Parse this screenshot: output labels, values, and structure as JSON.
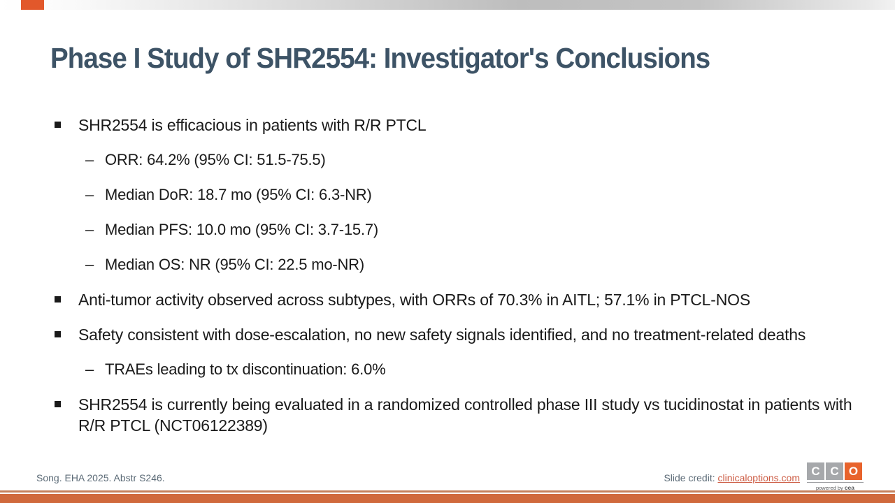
{
  "slide": {
    "title": "Phase I Study of SHR2554: Investigator's Conclusions",
    "markers": {
      "sub_dash": "–"
    },
    "bullets": [
      {
        "text": "SHR2554 is efficacious in patients with R/R PTCL",
        "sub": [
          "ORR: 64.2% (95% CI: 51.5-75.5)",
          "Median DoR: 18.7 mo (95% CI: 6.3-NR)",
          "Median PFS: 10.0 mo (95% CI: 3.7-15.7)",
          "Median OS: NR (95% CI: 22.5 mo-NR)"
        ]
      },
      {
        "text": "Anti-tumor activity observed across subtypes, with ORRs of 70.3% in AITL; 57.1% in PTCL-NOS"
      },
      {
        "text": "Safety consistent with dose-escalation, no new safety signals identified, and no treatment-related deaths",
        "sub": [
          "TRAEs leading to tx discontinuation: 6.0%"
        ]
      },
      {
        "text": "SHR2554 is currently being evaluated in a randomized controlled phase III study vs tucidinostat in patients with R/R PTCL (NCT06122389)"
      }
    ],
    "footer": {
      "source": "Song. EHA 2025. Abstr S246.",
      "credit_label": "Slide credit: ",
      "credit_link": "clinicaloptions.com"
    },
    "logo": {
      "letters": [
        "C",
        "C",
        "O"
      ],
      "tagline_prefix": "powered by ",
      "tagline_brand": "cea"
    },
    "colors": {
      "accent_orange": "#E2582B",
      "logo_orange": "#E8632C",
      "logo_gray": "#A6A8AB",
      "bottom_rule": "#C5805C",
      "bottom_bar": "#D0693C",
      "title_text": "#3D5366",
      "footer_text": "#5C6B77",
      "link_text": "#CC5B43",
      "body_text": "#1A1A1A"
    }
  }
}
